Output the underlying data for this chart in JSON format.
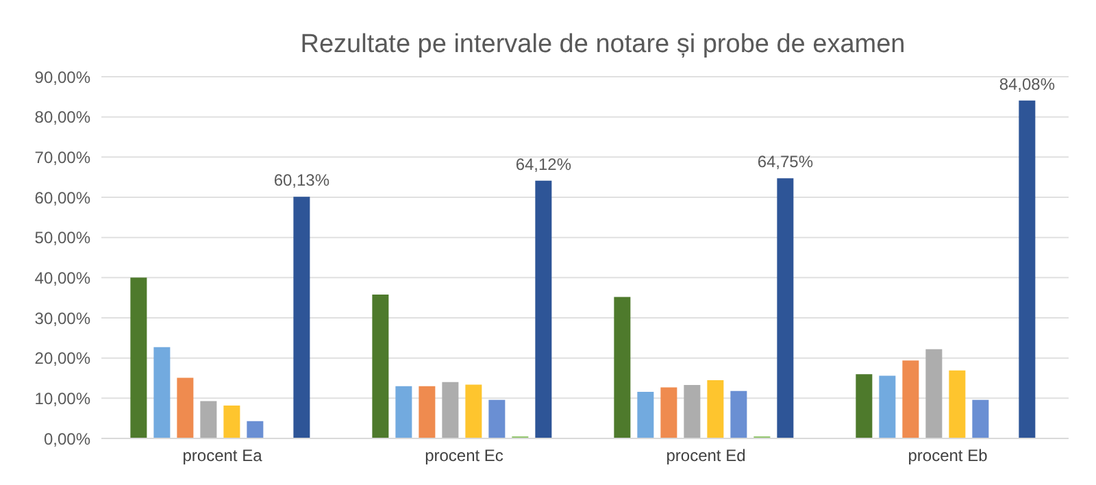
{
  "chart_data": {
    "type": "bar",
    "title": "Rezultate pe intervale de notare și probe de examen",
    "categories": [
      "procent Ea",
      "procent Ec",
      "procent Ed",
      "procent Eb"
    ],
    "series": [
      {
        "color": "#4e7a2c",
        "values": [
          40.0,
          35.8,
          35.2,
          16.0
        ]
      },
      {
        "color": "#72aadf",
        "values": [
          22.7,
          13.0,
          11.6,
          15.6
        ]
      },
      {
        "color": "#ef8b4f",
        "values": [
          15.1,
          13.0,
          12.7,
          19.4
        ]
      },
      {
        "color": "#adadad",
        "values": [
          9.3,
          14.0,
          13.3,
          22.2
        ]
      },
      {
        "color": "#fec52e",
        "values": [
          8.2,
          13.4,
          14.5,
          16.9
        ]
      },
      {
        "color": "#6a8fd3",
        "values": [
          4.3,
          9.6,
          11.8,
          9.6
        ]
      },
      {
        "color": "#8fc46a",
        "values": [
          0,
          0.5,
          0.5,
          0
        ]
      },
      {
        "color": "#2e5597",
        "values": [
          60.13,
          64.12,
          64.75,
          84.08
        ],
        "value_labels": [
          "60,13%",
          "64,12%",
          "64,75%",
          "84,08%"
        ]
      }
    ],
    "ylim": [
      0,
      90
    ],
    "yticks": [
      {
        "value": 0,
        "label": "0,00%"
      },
      {
        "value": 10,
        "label": "10,00%"
      },
      {
        "value": 20,
        "label": "20,00%"
      },
      {
        "value": 30,
        "label": "30,00%"
      },
      {
        "value": 40,
        "label": "40,00%"
      },
      {
        "value": 50,
        "label": "50,00%"
      },
      {
        "value": 60,
        "label": "60,00%"
      },
      {
        "value": 70,
        "label": "70,00%"
      },
      {
        "value": 80,
        "label": "80,00%"
      },
      {
        "value": 90,
        "label": "90,00%"
      }
    ],
    "grid": "y",
    "legend": false
  }
}
